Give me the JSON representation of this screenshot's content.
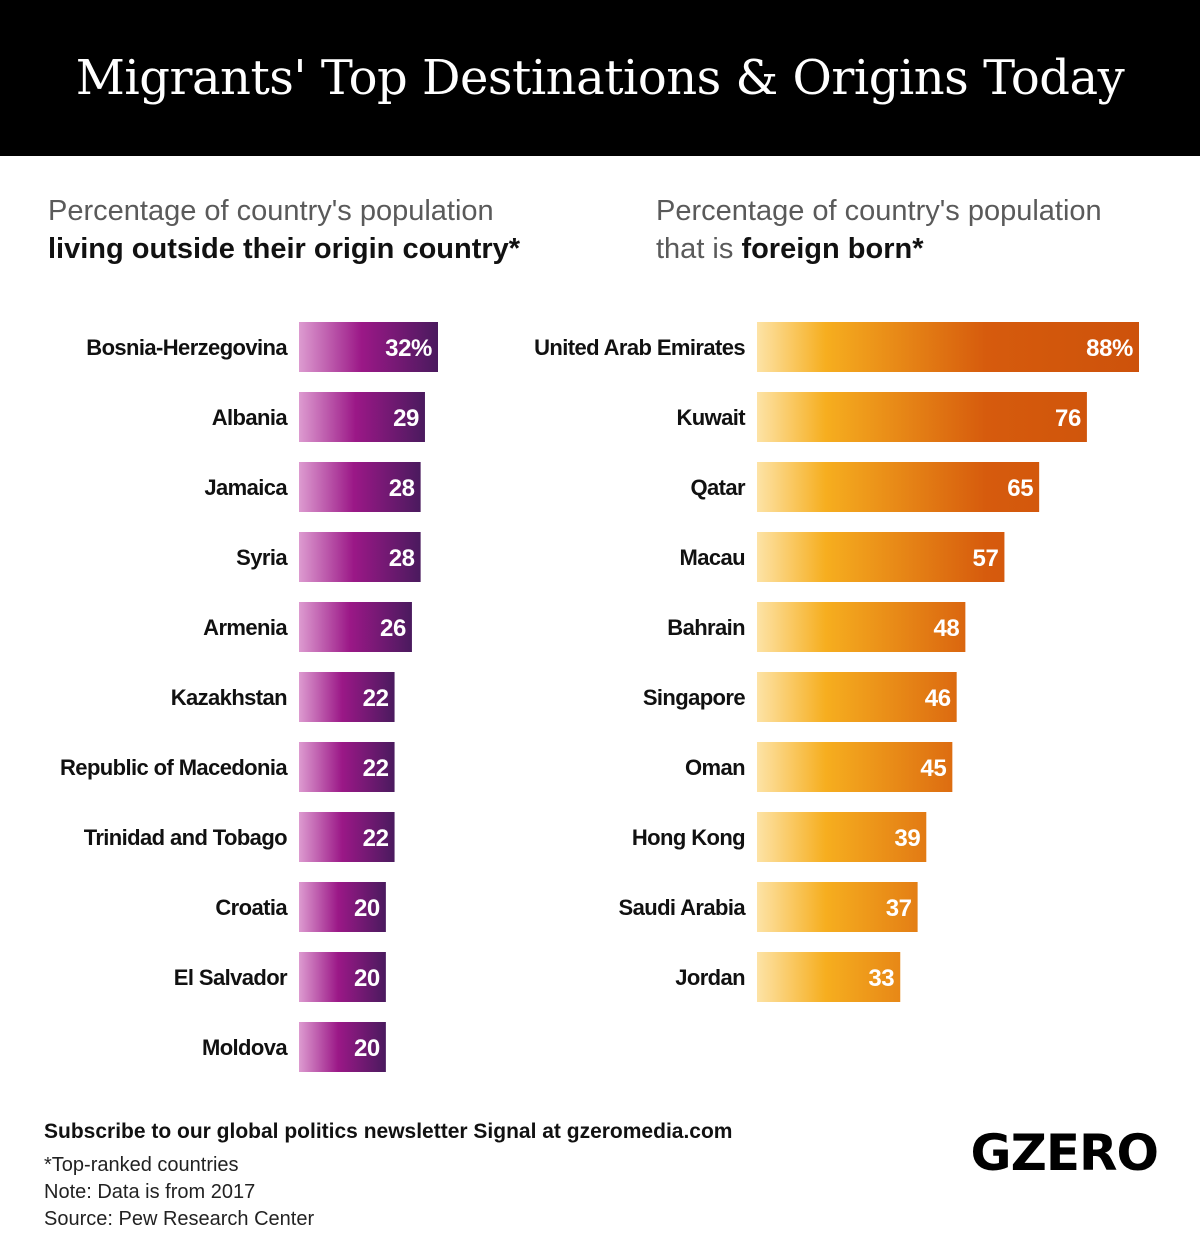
{
  "header": {
    "title": "Migrants' Top Destinations & Origins Today"
  },
  "left": {
    "subtitle_line1": "Percentage of country's population",
    "subtitle_line2": "living outside their origin country*"
  },
  "right": {
    "subtitle_line1": "Percentage of country's population",
    "subtitle_prefix": "that is ",
    "subtitle_emph": "foreign born*"
  },
  "footer": {
    "subscribe": "Subscribe to our global politics newsletter Signal at gzeromedia.com",
    "note1": "*Top-ranked countries",
    "note2": "Note: Data is from 2017",
    "source": "Source: Pew Research Center"
  },
  "logo": {
    "text": "GZERO"
  },
  "colors": {
    "left_gradient": [
      "#dd9bd0",
      "#9b1887",
      "#4a1a5e"
    ],
    "right_gradient": [
      "#fde3a6",
      "#f6ae1f",
      "#d65b0d",
      "#cd520b"
    ]
  },
  "chart_data": [
    {
      "type": "bar",
      "orientation": "horizontal",
      "title": "Percentage of country's population living outside their origin country*",
      "categories": [
        "Bosnia-Herzegovina",
        "Albania",
        "Jamaica",
        "Syria",
        "Armenia",
        "Kazakhstan",
        "Republic of Macedonia",
        "Trinidad and Tobago",
        "Croatia",
        "El Salvador",
        "Moldova"
      ],
      "values": [
        32,
        29,
        28,
        28,
        26,
        22,
        22,
        22,
        20,
        20,
        20
      ],
      "value_labels": [
        "32%",
        "29",
        "28",
        "28",
        "26",
        "22",
        "22",
        "22",
        "20",
        "20",
        "20"
      ],
      "unit": "%"
    },
    {
      "type": "bar",
      "orientation": "horizontal",
      "title": "Percentage of country's population that is foreign born*",
      "categories": [
        "United Arab Emirates",
        "Kuwait",
        "Qatar",
        "Macau",
        "Bahrain",
        "Singapore",
        "Oman",
        "Hong Kong",
        "Saudi Arabia",
        "Jordan"
      ],
      "values": [
        88,
        76,
        65,
        57,
        48,
        46,
        45,
        39,
        37,
        33
      ],
      "value_labels": [
        "88%",
        "76",
        "65",
        "57",
        "48",
        "46",
        "45",
        "39",
        "37",
        "33"
      ],
      "unit": "%"
    }
  ]
}
